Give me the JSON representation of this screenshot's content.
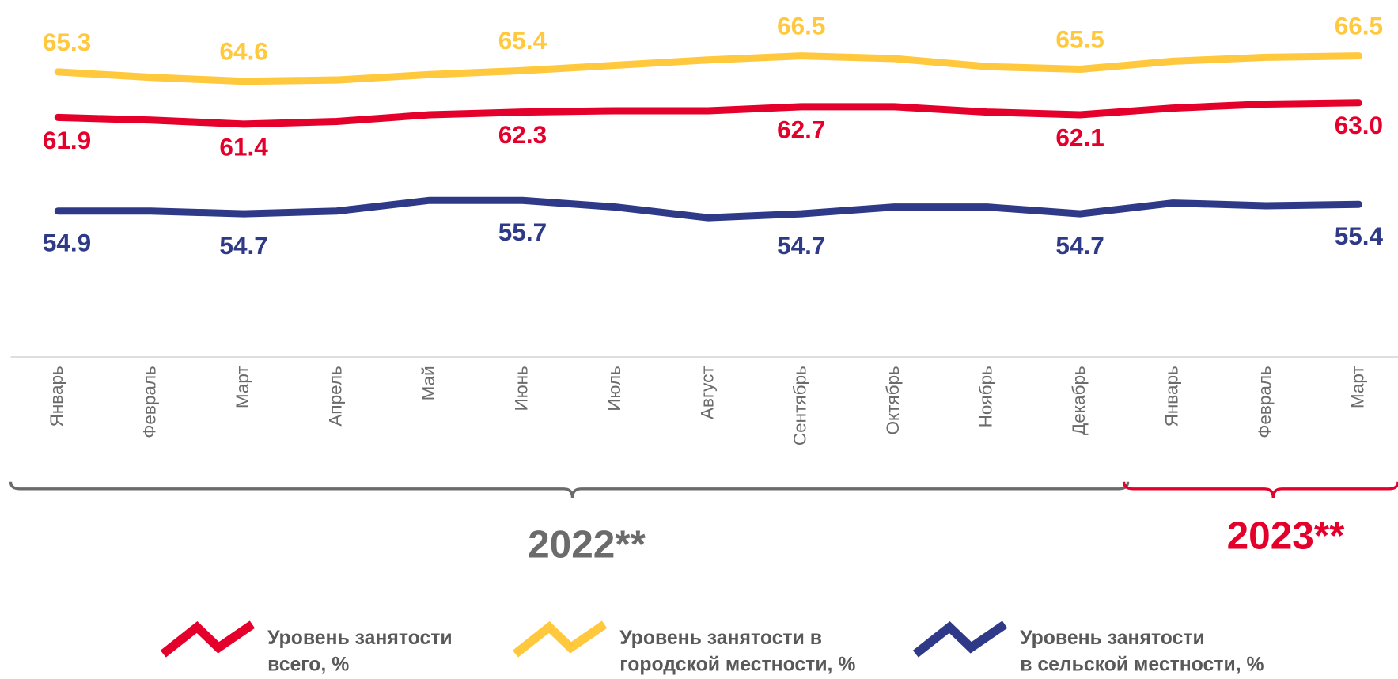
{
  "chart_data": {
    "type": "line",
    "categories": [
      "Январь",
      "Февраль",
      "Март",
      "Апрель",
      "Май",
      "Июнь",
      "Июль",
      "Август",
      "Сентябрь",
      "Октябрь",
      "Ноябрь",
      "Декабрь",
      "Январь",
      "Февраль",
      "Март"
    ],
    "periods": [
      {
        "label": "2022**",
        "color": "#6b6b6b",
        "from": 0,
        "to": 11
      },
      {
        "label": "2023**",
        "color": "#e4002b",
        "from": 12,
        "to": 14
      }
    ],
    "ylim": [
      50,
      70
    ],
    "series": [
      {
        "name": "Уровень занятости\nвсего, %",
        "color": "#e4002b",
        "values": [
          61.9,
          61.7,
          61.4,
          61.6,
          62.1,
          62.3,
          62.4,
          62.4,
          62.7,
          62.7,
          62.3,
          62.1,
          62.6,
          62.9,
          63.0
        ],
        "value_labels": [
          "61.9",
          null,
          "61.4",
          null,
          null,
          "62.3",
          null,
          null,
          "62.7",
          null,
          null,
          "62.1",
          null,
          null,
          "63.0"
        ]
      },
      {
        "name": "Уровень занятости в\nгородской местности, %",
        "color": "#ffc83d",
        "values": [
          65.3,
          64.9,
          64.6,
          64.7,
          65.1,
          65.4,
          65.8,
          66.2,
          66.5,
          66.3,
          65.7,
          65.5,
          66.1,
          66.4,
          66.5
        ],
        "value_labels": [
          "65.3",
          null,
          "64.6",
          null,
          null,
          "65.4",
          null,
          null,
          "66.5",
          null,
          null,
          "65.5",
          null,
          null,
          "66.5"
        ]
      },
      {
        "name": "Уровень занятости\nв сельской местности, %",
        "color": "#2e3a87",
        "values": [
          54.9,
          54.9,
          54.7,
          54.9,
          55.7,
          55.7,
          55.2,
          54.4,
          54.7,
          55.2,
          55.2,
          54.7,
          55.5,
          55.3,
          55.4
        ],
        "value_labels": [
          "54.9",
          null,
          "54.7",
          null,
          null,
          "55.7",
          null,
          null,
          "54.7",
          null,
          null,
          "54.7",
          null,
          null,
          "55.4"
        ]
      }
    ]
  }
}
